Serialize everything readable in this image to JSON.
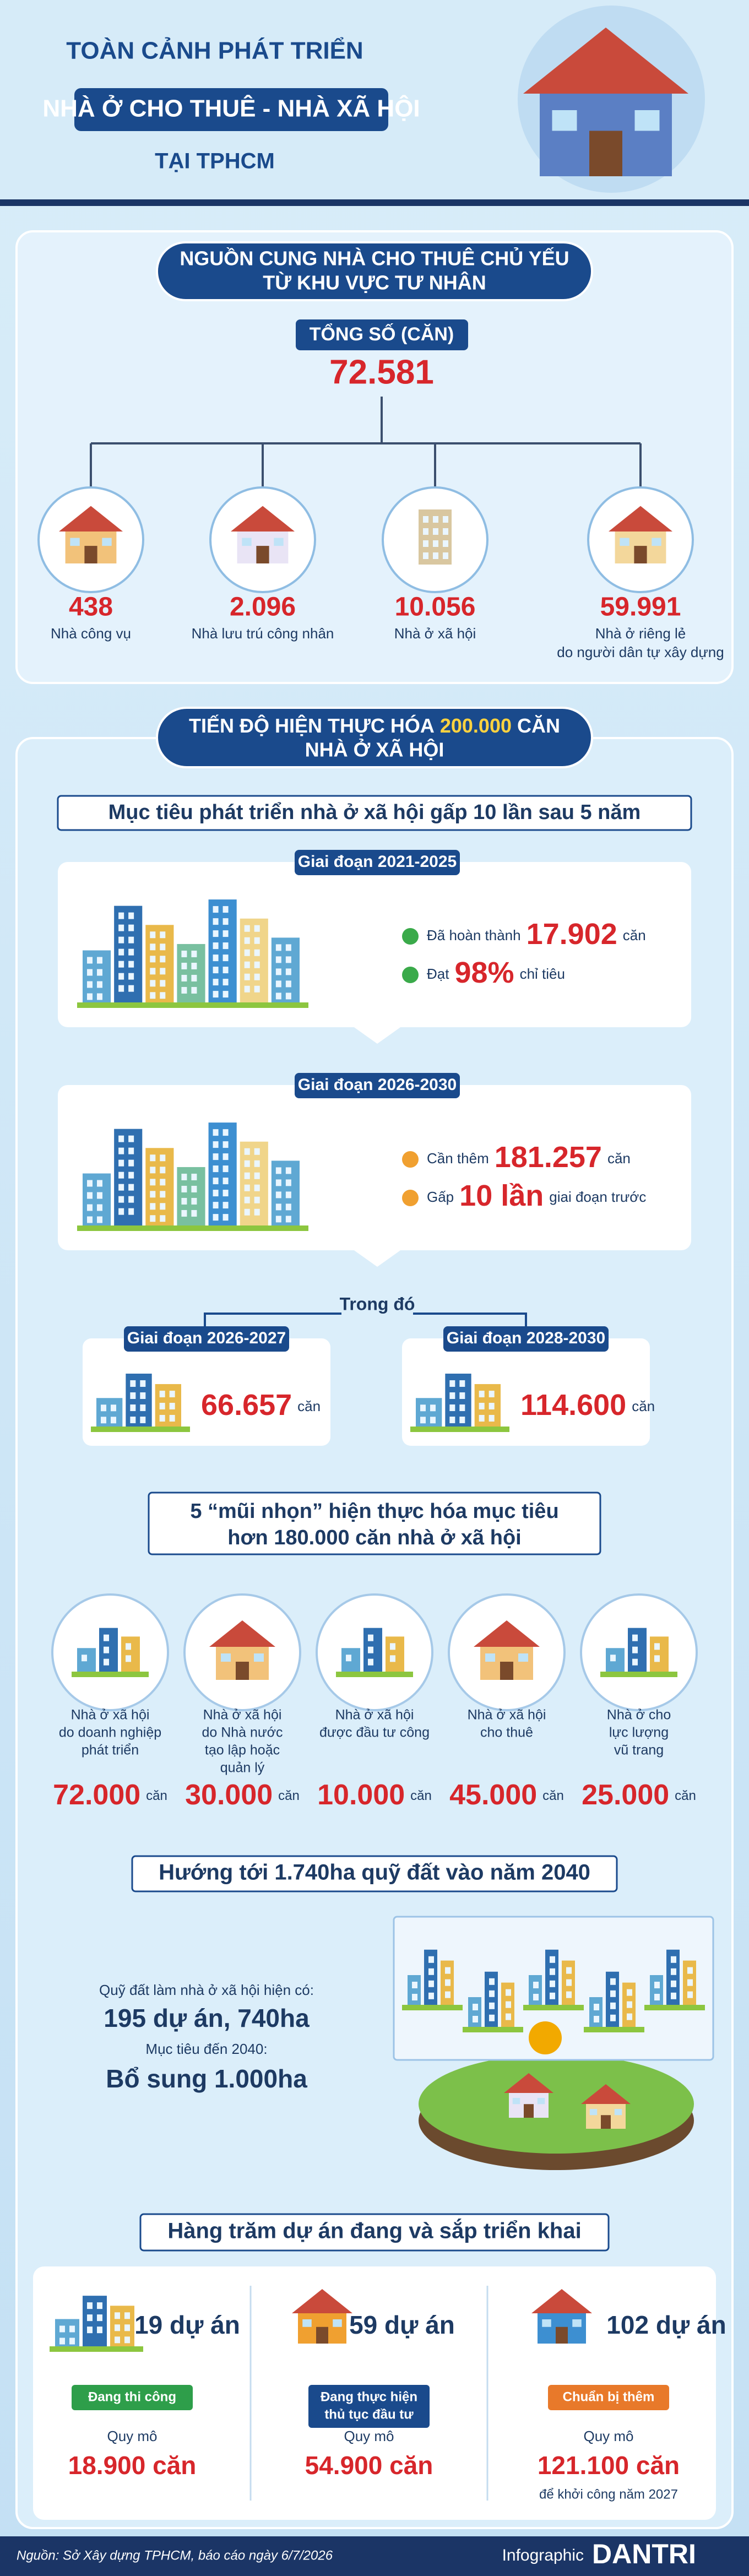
{
  "header": {
    "title_top": "TOÀN CẢNH PHÁT TRIỂN",
    "title_main": "NHÀ Ở CHO THUÊ - NHÀ XÃ HỘI",
    "title_sub": "TẠI TPHCM"
  },
  "rental_supply": {
    "title": [
      "NGUỒN CUNG NHÀ CHO THUÊ CHỦ YẾU",
      "TỪ KHU VỰC TƯ NHÂN"
    ],
    "total_label": "TỔNG SỐ (CĂN)",
    "total": "72.581",
    "items": [
      {
        "value": "438",
        "label": [
          "Nhà công vụ"
        ]
      },
      {
        "value": "2.096",
        "label": [
          "Nhà lưu trú công nhân"
        ]
      },
      {
        "value": "10.056",
        "label": [
          "Nhà ở xã hội"
        ]
      },
      {
        "value": "59.991",
        "label": [
          "Nhà ở riêng lẻ",
          "do người dân tự xây dựng"
        ]
      }
    ]
  },
  "social_housing": {
    "title": {
      "before": "TIẾN ĐỘ HIỆN THỰC HÓA",
      "highlight": "200.000",
      "after": "CĂN",
      "line2": "NHÀ Ở XÃ HỘI"
    },
    "goal": "Mục tiêu phát triển nhà ở xã hội gấp 10 lần sau 5 năm",
    "phases": [
      {
        "label": "Giai đoạn 2021-2025",
        "rows": [
          {
            "prefix": "Đã hoàn thành",
            "value": "17.902",
            "suffix": "căn"
          },
          {
            "prefix": "Đạt",
            "value": "98%",
            "suffix": "chỉ tiêu"
          }
        ]
      },
      {
        "label": "Giai đoạn 2026-2030",
        "rows": [
          {
            "prefix": "Cần thêm",
            "value": "181.257",
            "suffix": "căn"
          },
          {
            "prefix": "Gấp",
            "value": "10 lần",
            "suffix": "giai đoạn trước"
          }
        ]
      }
    ],
    "breakdown_label": "Trong đó",
    "sub_phases": [
      {
        "label": "Giai đoạn 2026-2027",
        "value": "66.657",
        "unit": "căn"
      },
      {
        "label": "Giai đoạn 2028-2030",
        "value": "114.600",
        "unit": "căn"
      }
    ]
  },
  "spearheads": {
    "title": [
      "5 “mũi nhọn” hiện thực hóa mục tiêu",
      "hơn 180.000 căn nhà ở xã hội"
    ],
    "items": [
      {
        "label": [
          "Nhà ở xã hội",
          "do doanh nghiệp",
          "phát triển"
        ],
        "value": "72.000",
        "unit": "căn"
      },
      {
        "label": [
          "Nhà ở xã hội",
          "do Nhà nước",
          "tạo lập hoặc",
          "quản lý"
        ],
        "value": "30.000",
        "unit": "căn"
      },
      {
        "label": [
          "Nhà ở xã hội",
          "được đầu tư công"
        ],
        "value": "10.000",
        "unit": "căn"
      },
      {
        "label": [
          "Nhà ở xã hội",
          "cho thuê"
        ],
        "value": "45.000",
        "unit": "căn"
      },
      {
        "label": [
          "Nhà ở cho",
          "lực lượng",
          "vũ trang"
        ],
        "value": "25.000",
        "unit": "căn"
      }
    ]
  },
  "land": {
    "title": "Hướng tới 1.740ha quỹ đất vào năm 2040",
    "current_label": "Quỹ đất làm nhà ở xã hội hiện có:",
    "current_value": "195 dự án, 740ha",
    "target_label": "Mục tiêu đến 2040:",
    "target_value": "Bổ sung 1.000ha"
  },
  "projects": {
    "title": "Hàng trăm dự án đang và sắp triển khai",
    "items": [
      {
        "count": "19 dự án",
        "status": [
          "Đang thi công"
        ],
        "scale_label": "Quy mô",
        "scale": "18.900 căn"
      },
      {
        "count": "59 dự án",
        "status": [
          "Đang thực hiện",
          "thủ tục đầu tư"
        ],
        "scale_label": "Quy mô",
        "scale": "54.900 căn"
      },
      {
        "count": "102 dự án",
        "status": [
          "Chuẩn bị thêm"
        ],
        "scale_label": "Quy mô",
        "scale": "121.100 căn",
        "note": "để khởi công năm 2027"
      }
    ]
  },
  "footer": {
    "source": "Nguồn: Sở Xây dựng TPHCM, báo cáo ngày 6/7/2026",
    "brand_prefix": "Infographic",
    "brand": "DANTRI"
  }
}
